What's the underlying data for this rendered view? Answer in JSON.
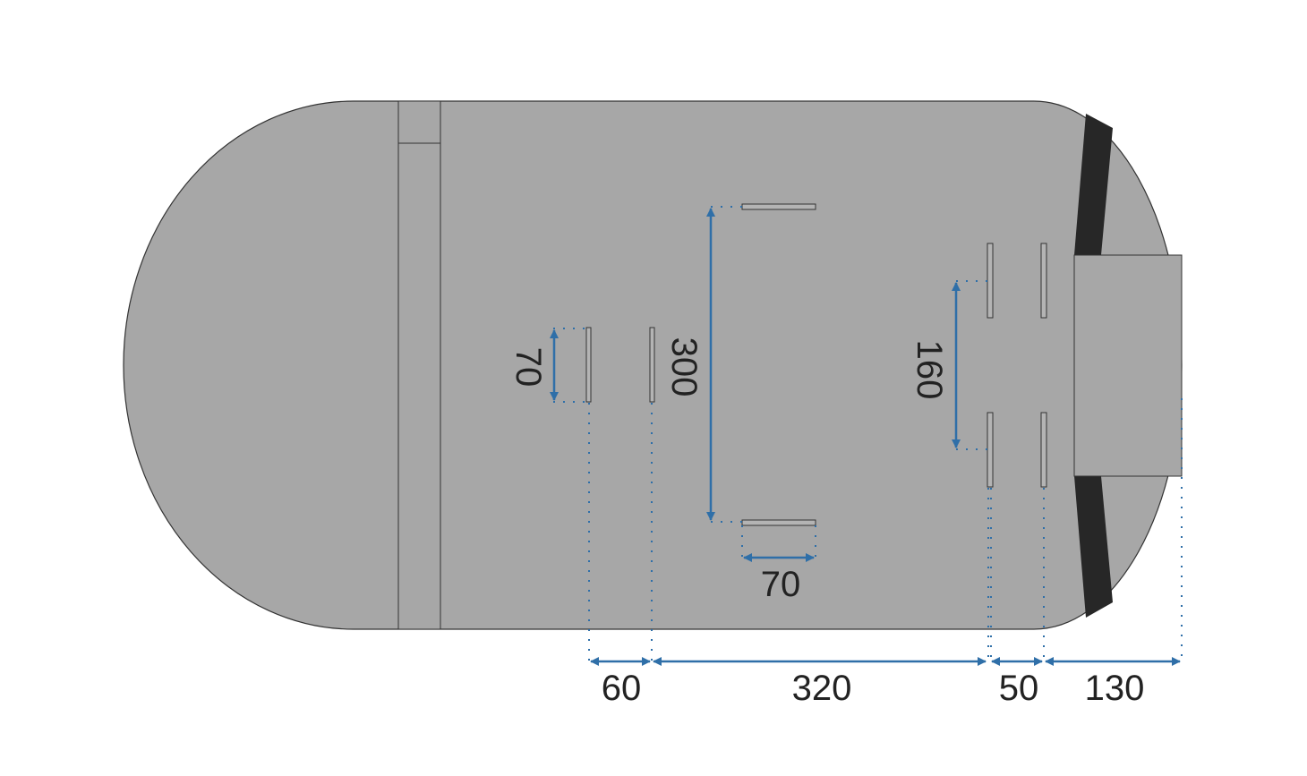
{
  "colors": {
    "body": "#a7a7a7",
    "outline": "#333333",
    "band": "#272727",
    "dimension": "#2f6fa8",
    "text": "#222222"
  },
  "dimensions": {
    "slot_height_left": "70",
    "slot_spacing_vertical": "300",
    "slot_spacing_right": "160",
    "slot_width_horizontal": "70",
    "bottom": [
      "60",
      "320",
      "50",
      "130"
    ]
  }
}
